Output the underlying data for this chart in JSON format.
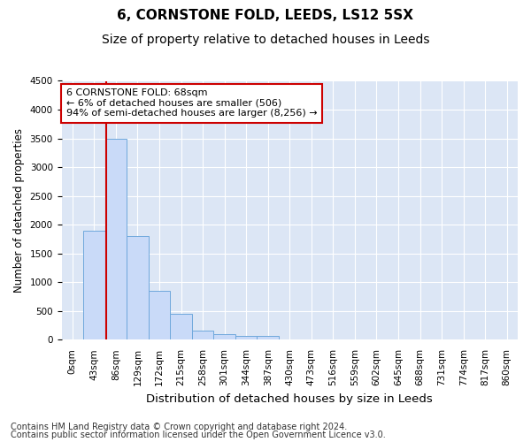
{
  "title": "6, CORNSTONE FOLD, LEEDS, LS12 5SX",
  "subtitle": "Size of property relative to detached houses in Leeds",
  "xlabel": "Distribution of detached houses by size in Leeds",
  "ylabel": "Number of detached properties",
  "bar_labels": [
    "0sqm",
    "43sqm",
    "86sqm",
    "129sqm",
    "172sqm",
    "215sqm",
    "258sqm",
    "301sqm",
    "344sqm",
    "387sqm",
    "430sqm",
    "473sqm",
    "516sqm",
    "559sqm",
    "602sqm",
    "645sqm",
    "688sqm",
    "731sqm",
    "774sqm",
    "817sqm",
    "860sqm"
  ],
  "bar_values": [
    5,
    1900,
    3500,
    1800,
    850,
    450,
    160,
    90,
    70,
    60,
    0,
    0,
    0,
    0,
    0,
    0,
    0,
    0,
    0,
    0,
    0
  ],
  "bar_color": "#c9daf8",
  "bar_edge_color": "#6fa8dc",
  "property_line_x": 1.57,
  "property_line_color": "#cc0000",
  "annotation_line1": "6 CORNSTONE FOLD: 68sqm",
  "annotation_line2": "← 6% of detached houses are smaller (506)",
  "annotation_line3": "94% of semi-detached houses are larger (8,256) →",
  "annotation_box_color": "#ffffff",
  "annotation_box_edge_color": "#cc0000",
  "ylim": [
    0,
    4500
  ],
  "yticks": [
    0,
    500,
    1000,
    1500,
    2000,
    2500,
    3000,
    3500,
    4000,
    4500
  ],
  "footer_line1": "Contains HM Land Registry data © Crown copyright and database right 2024.",
  "footer_line2": "Contains public sector information licensed under the Open Government Licence v3.0.",
  "background_color": "#ffffff",
  "plot_bg_color": "#dce6f5",
  "grid_color": "#ffffff",
  "title_fontsize": 11,
  "subtitle_fontsize": 10,
  "xlabel_fontsize": 9.5,
  "ylabel_fontsize": 8.5,
  "tick_fontsize": 7.5,
  "annotation_fontsize": 8,
  "footer_fontsize": 7
}
